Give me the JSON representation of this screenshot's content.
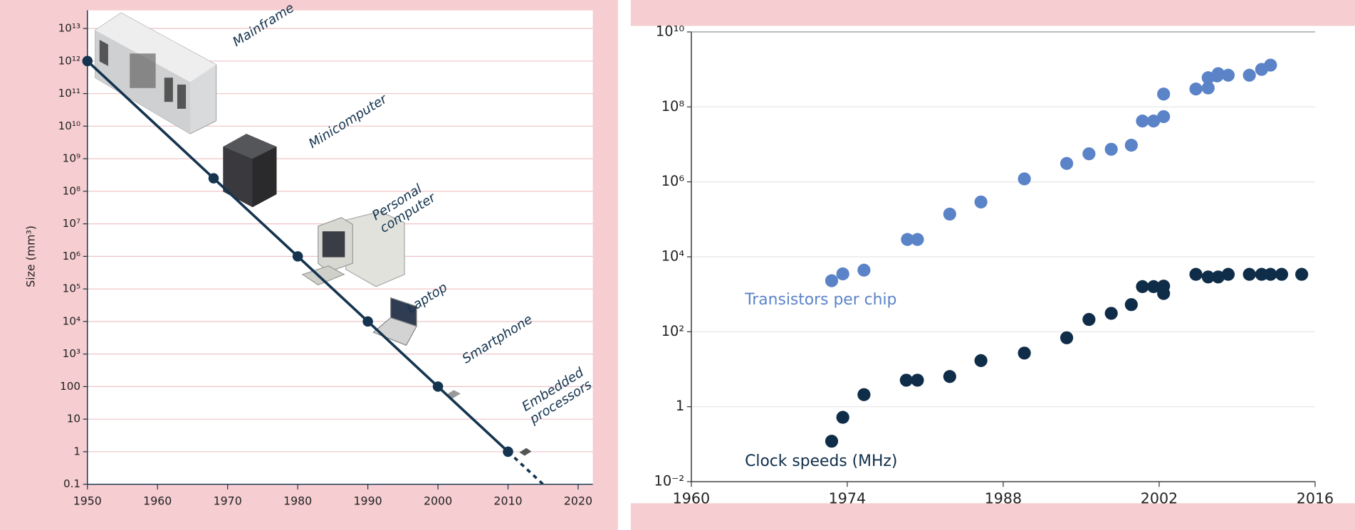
{
  "chart_data": [
    {
      "type": "line",
      "ylabel": "Size (mm³)",
      "log_y": true,
      "grid": true,
      "xlim": [
        1950,
        2020
      ],
      "xticks": [
        1950,
        1960,
        1970,
        1980,
        1990,
        2000,
        2010,
        2020
      ],
      "ylim": [
        0.1,
        10000000000000
      ],
      "yticks": [
        0.1,
        1,
        10,
        100,
        {
          "value": 1000,
          "label": "10³"
        },
        {
          "value": 10000,
          "label": "10⁴"
        },
        {
          "value": 100000,
          "label": "10⁵"
        },
        {
          "value": 1000000,
          "label": "10⁶"
        },
        {
          "value": 10000000,
          "label": "10⁷"
        },
        {
          "value": 100000000,
          "label": "10⁸"
        },
        {
          "value": 1000000000,
          "label": "10⁹"
        },
        {
          "value": 10000000000,
          "label": "10¹⁰"
        },
        {
          "value": 100000000000,
          "label": "10¹¹"
        },
        {
          "value": 1000000000000,
          "label": "10¹²"
        },
        {
          "value": 10000000000000,
          "label": "10¹³"
        }
      ],
      "series": [
        {
          "color": "#14344f",
          "x": [
            1950,
            1968,
            1980,
            1990,
            2000,
            2010
          ],
          "values": [
            1000000000000,
            250000000,
            1000000,
            10000,
            100,
            1
          ],
          "point_labels": [
            "Mainframe",
            "Minicomputer",
            "Personal computer",
            "Laptop",
            "Smartphone",
            "Embedded processors"
          ]
        }
      ],
      "projection": {
        "x": [
          2010,
          2015
        ],
        "values": [
          1,
          0.1
        ]
      }
    },
    {
      "type": "scatter",
      "log_y": true,
      "grid": true,
      "xlim": [
        1960,
        2016
      ],
      "xticks": [
        1960,
        1974,
        1988,
        2002,
        2016
      ],
      "ylim": [
        0.01,
        10000000000
      ],
      "yticks": [
        {
          "value": 0.01,
          "label": "10⁻²"
        },
        1,
        {
          "value": 100,
          "label": "10²"
        },
        {
          "value": 10000,
          "label": "10⁴"
        },
        {
          "value": 1000000,
          "label": "10⁶"
        },
        {
          "value": 100000000,
          "label": "10⁸"
        },
        {
          "value": 10000000000,
          "label": "10¹⁰"
        }
      ],
      "series": [
        {
          "name": "Transistors per chip",
          "color": "#5b83c8",
          "x": [
            1972.6,
            1973.6,
            1975.5,
            1979.4,
            1980.3,
            1983.2,
            1986.0,
            1989.9,
            1993.7,
            1995.7,
            1997.7,
            1999.5,
            2000.5,
            2001.5,
            2002.4,
            2002.4,
            2005.3,
            2006.4,
            2006.4,
            2007.2,
            2007.3,
            2008.2,
            2010.1,
            2011.2,
            2012.0
          ],
          "values": [
            2300,
            3500,
            4400,
            29000,
            29000,
            138000,
            290000,
            1200000,
            3100000,
            5600000,
            7400000,
            9500000,
            42000000,
            42000000,
            55000000,
            220000000,
            300000000,
            320000000,
            600000000,
            670000000,
            770000000,
            700000000,
            700000000,
            1000000000,
            1300000000
          ]
        },
        {
          "name": "Clock speeds (MHz)",
          "color": "#0f2d48",
          "x": [
            1972.6,
            1973.6,
            1975.5,
            1979.3,
            1980.3,
            1983.2,
            1986.0,
            1989.9,
            1993.7,
            1995.7,
            1997.7,
            1999.5,
            2000.5,
            2001.5,
            2002.4,
            2002.4,
            2005.3,
            2006.4,
            2007.3,
            2008.2,
            2010.1,
            2011.2,
            2012.0,
            2013.0,
            2014.8
          ],
          "values": [
            0.12,
            0.52,
            2.1,
            5.1,
            5.1,
            6.4,
            17,
            27,
            69,
            213,
            310,
            530,
            1600,
            1600,
            1650,
            1050,
            3400,
            2900,
            2900,
            3400,
            3400,
            3400,
            3400,
            3400,
            3400
          ]
        }
      ]
    }
  ]
}
